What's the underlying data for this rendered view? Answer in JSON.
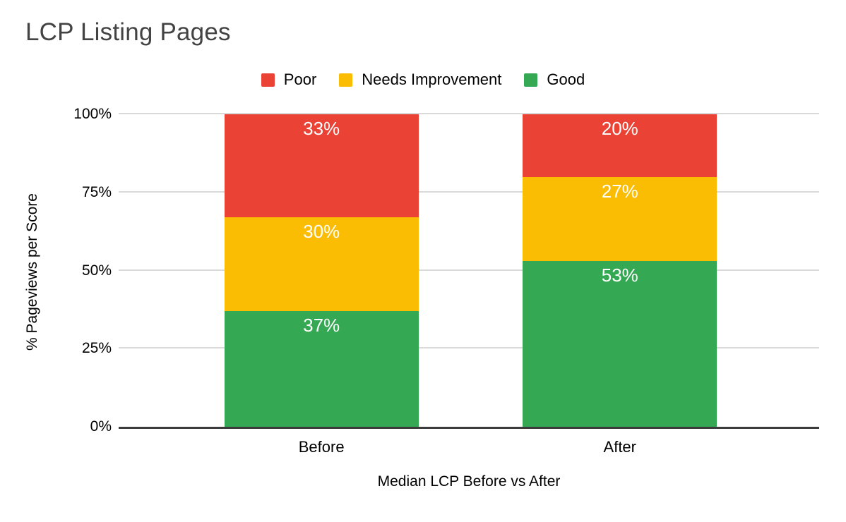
{
  "chart_data": {
    "type": "bar",
    "variant": "stacked-column-100",
    "title": "LCP Listing Pages",
    "xlabel": "Median LCP Before vs After",
    "ylabel": "% Pageviews per Score",
    "categories": [
      "Before",
      "After"
    ],
    "series": [
      {
        "name": "Poor",
        "color": "#EA4335",
        "values": [
          33,
          20
        ],
        "labels": [
          "33%",
          "20%"
        ]
      },
      {
        "name": "Needs Improvement",
        "color": "#FBBC04",
        "values": [
          30,
          27
        ],
        "labels": [
          "30%",
          "27%"
        ]
      },
      {
        "name": "Good",
        "color": "#34A853",
        "values": [
          37,
          53
        ],
        "labels": [
          "37%",
          "53%"
        ]
      }
    ],
    "stack_order_top_to_bottom": [
      "Poor",
      "Needs Improvement",
      "Good"
    ],
    "ylim": [
      0,
      100
    ],
    "y_ticks": [
      {
        "label": "0%",
        "value": 0
      },
      {
        "label": "25%",
        "value": 25
      },
      {
        "label": "50%",
        "value": 50
      },
      {
        "label": "75%",
        "value": 75
      },
      {
        "label": "100%",
        "value": 100
      }
    ],
    "legend_position": "top",
    "grid": true,
    "data_labels": "inside-top",
    "colors": {
      "grid": "#d9d9d9",
      "axis": "#3c3c3c",
      "title_text": "#434343",
      "axis_text": "#000000",
      "data_label_text": "#ffffff",
      "background": "#ffffff"
    }
  }
}
